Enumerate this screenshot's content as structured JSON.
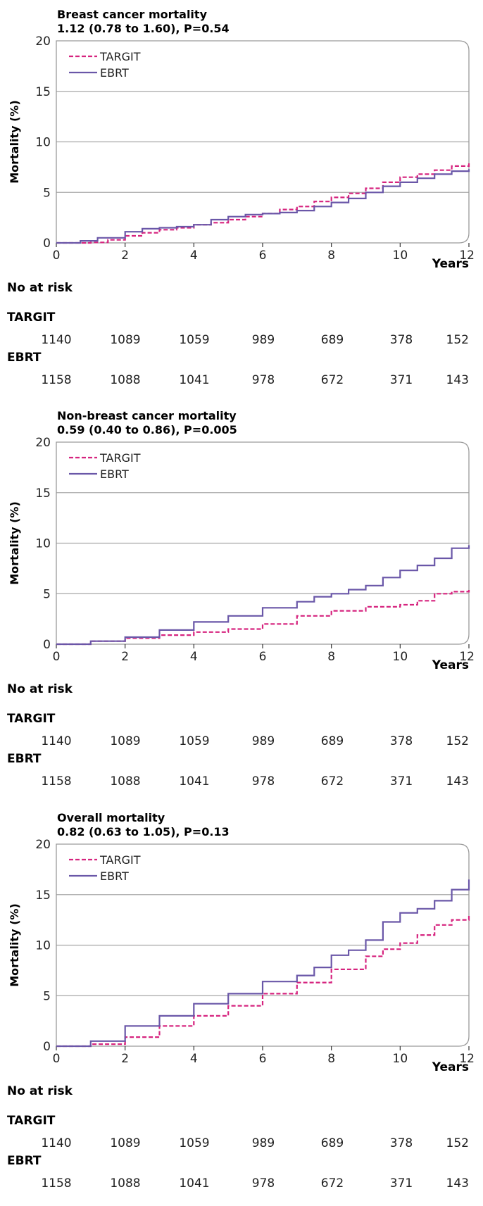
{
  "colors": {
    "targit": "#d6247f",
    "ebrt": "#6a57a8",
    "grid": "#a8a8a8",
    "frame": "#9a9a9a"
  },
  "chart_data": [
    {
      "type": "line",
      "title": "Breast cancer mortality",
      "subtitle": "1.12 (0.78 to 1.60), P=0.54",
      "xlabel": "Years",
      "ylabel": "Mortality (%)",
      "xlim": [
        0,
        12
      ],
      "ylim": [
        0,
        20
      ],
      "xticks": [
        0,
        2,
        4,
        6,
        8,
        10,
        12
      ],
      "yticks": [
        0,
        5,
        10,
        15,
        20
      ],
      "grid": "horizontal",
      "legend": "top-left",
      "series": [
        {
          "name": "TARGIT",
          "style": "dashed",
          "x": [
            0,
            1,
            1.5,
            2,
            2.5,
            3,
            3.5,
            4,
            4.5,
            5,
            5.5,
            6,
            6.5,
            7,
            7.5,
            8,
            8.5,
            9,
            9.5,
            10,
            10.5,
            11,
            11.5,
            12
          ],
          "y": [
            0,
            0.05,
            0.3,
            0.7,
            1.0,
            1.3,
            1.5,
            1.8,
            2.0,
            2.3,
            2.6,
            2.9,
            3.3,
            3.6,
            4.1,
            4.5,
            4.9,
            5.4,
            6.0,
            6.5,
            6.8,
            7.2,
            7.6,
            7.9
          ]
        },
        {
          "name": "EBRT",
          "style": "solid",
          "x": [
            0,
            0.7,
            1.2,
            2,
            2.5,
            3,
            3.5,
            4,
            4.5,
            5,
            5.5,
            6,
            6.5,
            7,
            7.5,
            8,
            8.5,
            9,
            9.5,
            10,
            10.5,
            11,
            11.5,
            12
          ],
          "y": [
            0,
            0.2,
            0.5,
            1.1,
            1.4,
            1.5,
            1.6,
            1.8,
            2.3,
            2.6,
            2.8,
            2.9,
            3.0,
            3.2,
            3.6,
            4.0,
            4.4,
            5.0,
            5.6,
            6.0,
            6.4,
            6.8,
            7.1,
            7.3
          ]
        }
      ],
      "at_risk": {
        "heading": "No at risk",
        "rows": [
          {
            "label": "TARGIT",
            "values": [
              "1140",
              "1089",
              "1059",
              "989",
              "689",
              "378",
              "152"
            ]
          },
          {
            "label": "EBRT",
            "values": [
              "1158",
              "1088",
              "1041",
              "978",
              "672",
              "371",
              "143"
            ]
          }
        ]
      }
    },
    {
      "type": "line",
      "title": "Non-breast cancer mortality",
      "subtitle": "0.59 (0.40 to 0.86), P=0.005",
      "xlabel": "Years",
      "ylabel": "Mortality (%)",
      "xlim": [
        0,
        12
      ],
      "ylim": [
        0,
        20
      ],
      "xticks": [
        0,
        2,
        4,
        6,
        8,
        10,
        12
      ],
      "yticks": [
        0,
        5,
        10,
        15,
        20
      ],
      "grid": "horizontal",
      "legend": "top-left",
      "series": [
        {
          "name": "TARGIT",
          "style": "dashed",
          "x": [
            0,
            1,
            2,
            3,
            4,
            5,
            6,
            7,
            8,
            9,
            10,
            10.5,
            11,
            11.5,
            12
          ],
          "y": [
            0,
            0.3,
            0.6,
            0.9,
            1.2,
            1.5,
            2.0,
            2.8,
            3.3,
            3.7,
            3.9,
            4.3,
            5.0,
            5.2,
            5.4
          ]
        },
        {
          "name": "EBRT",
          "style": "solid",
          "x": [
            0,
            1,
            2,
            3,
            4,
            5,
            6,
            7,
            7.5,
            8,
            8.5,
            9,
            9.5,
            10,
            10.5,
            11,
            11.5,
            12
          ],
          "y": [
            0,
            0.3,
            0.7,
            1.4,
            2.2,
            2.8,
            3.6,
            4.2,
            4.7,
            5.0,
            5.4,
            5.8,
            6.6,
            7.3,
            7.8,
            8.5,
            9.5,
            9.8
          ]
        }
      ],
      "at_risk": {
        "heading": "No at risk",
        "rows": [
          {
            "label": "TARGIT",
            "values": [
              "1140",
              "1089",
              "1059",
              "989",
              "689",
              "378",
              "152"
            ]
          },
          {
            "label": "EBRT",
            "values": [
              "1158",
              "1088",
              "1041",
              "978",
              "672",
              "371",
              "143"
            ]
          }
        ]
      }
    },
    {
      "type": "line",
      "title": "Overall mortality",
      "subtitle": "0.82 (0.63 to 1.05), P=0.13",
      "xlabel": "Years",
      "ylabel": "Mortality (%)",
      "xlim": [
        0,
        12
      ],
      "ylim": [
        0,
        20
      ],
      "xticks": [
        0,
        2,
        4,
        6,
        8,
        10,
        12
      ],
      "yticks": [
        0,
        5,
        10,
        15,
        20
      ],
      "grid": "horizontal",
      "legend": "top-left",
      "series": [
        {
          "name": "TARGIT",
          "style": "dashed",
          "x": [
            0,
            1,
            2,
            3,
            4,
            5,
            6,
            7,
            8,
            9,
            9.5,
            10,
            10.5,
            11,
            11.5,
            12
          ],
          "y": [
            0,
            0.2,
            0.9,
            2.0,
            3.0,
            4.0,
            5.2,
            6.3,
            7.6,
            8.9,
            9.6,
            10.2,
            11.0,
            12.0,
            12.5,
            12.9
          ]
        },
        {
          "name": "EBRT",
          "style": "solid",
          "x": [
            0,
            1,
            2,
            3,
            4,
            5,
            6,
            7,
            7.5,
            8,
            8.5,
            9,
            9.5,
            10,
            10.5,
            11,
            11.5,
            12
          ],
          "y": [
            0,
            0.5,
            2.0,
            3.0,
            4.2,
            5.2,
            6.4,
            7.0,
            7.8,
            9.0,
            9.5,
            10.5,
            12.3,
            13.2,
            13.6,
            14.4,
            15.5,
            16.5
          ]
        }
      ],
      "at_risk": {
        "heading": "No at risk",
        "rows": [
          {
            "label": "TARGIT",
            "values": [
              "1140",
              "1089",
              "1059",
              "989",
              "689",
              "378",
              "152"
            ]
          },
          {
            "label": "EBRT",
            "values": [
              "1158",
              "1088",
              "1041",
              "978",
              "672",
              "371",
              "143"
            ]
          }
        ]
      }
    }
  ]
}
